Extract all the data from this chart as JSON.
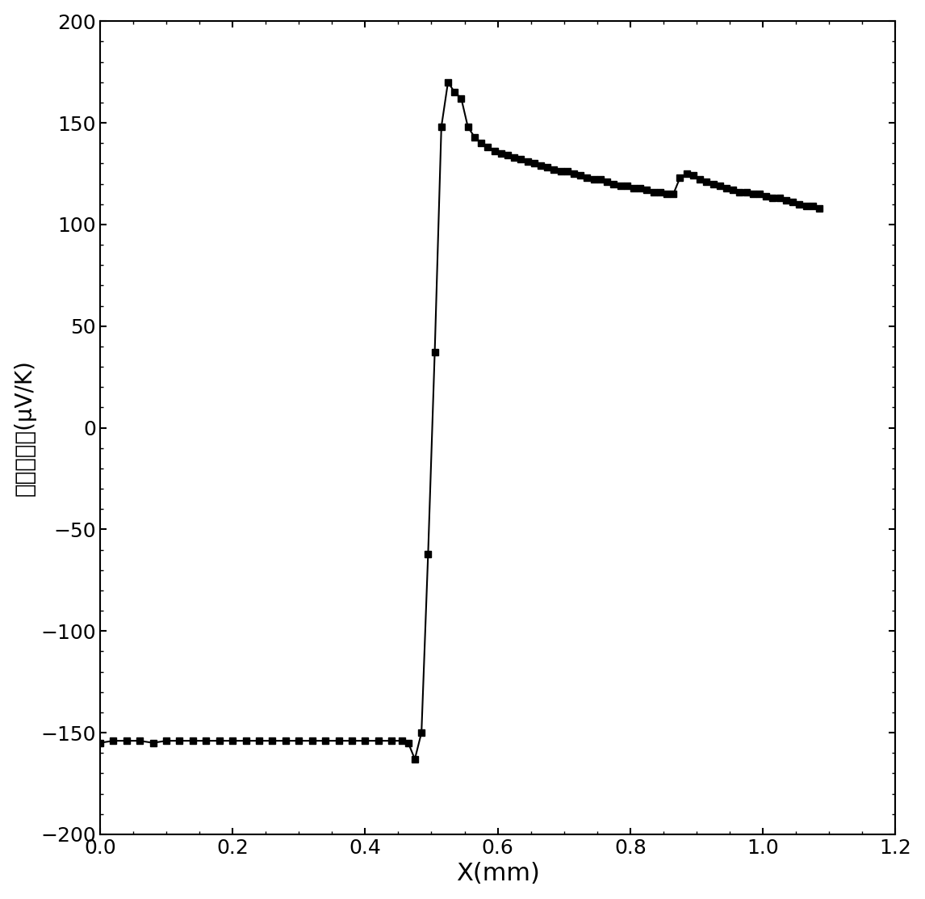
{
  "x": [
    0.0,
    0.02,
    0.04,
    0.06,
    0.08,
    0.1,
    0.12,
    0.14,
    0.16,
    0.18,
    0.2,
    0.22,
    0.24,
    0.26,
    0.28,
    0.3,
    0.32,
    0.34,
    0.36,
    0.38,
    0.4,
    0.42,
    0.44,
    0.455,
    0.465,
    0.475,
    0.485,
    0.495,
    0.505,
    0.515,
    0.525,
    0.535,
    0.545,
    0.555,
    0.565,
    0.575,
    0.585,
    0.595,
    0.605,
    0.615,
    0.625,
    0.635,
    0.645,
    0.655,
    0.665,
    0.675,
    0.685,
    0.695,
    0.705,
    0.715,
    0.725,
    0.735,
    0.745,
    0.755,
    0.765,
    0.775,
    0.785,
    0.795,
    0.805,
    0.815,
    0.825,
    0.835,
    0.845,
    0.855,
    0.865,
    0.875,
    0.885,
    0.895,
    0.905,
    0.915,
    0.925,
    0.935,
    0.945,
    0.955,
    0.965,
    0.975,
    0.985,
    0.995,
    1.005,
    1.015,
    1.025,
    1.035,
    1.045,
    1.055,
    1.065,
    1.075,
    1.085
  ],
  "y": [
    -155,
    -154,
    -154,
    -154,
    -155,
    -154,
    -154,
    -154,
    -154,
    -154,
    -154,
    -154,
    -154,
    -154,
    -154,
    -154,
    -154,
    -154,
    -154,
    -154,
    -154,
    -154,
    -154,
    -154,
    -155,
    -163,
    -150,
    -62,
    37,
    148,
    170,
    165,
    162,
    148,
    143,
    140,
    138,
    136,
    135,
    134,
    133,
    132,
    131,
    130,
    129,
    128,
    127,
    126,
    126,
    125,
    124,
    123,
    122,
    122,
    121,
    120,
    119,
    119,
    118,
    118,
    117,
    116,
    116,
    115,
    115,
    123,
    125,
    124,
    122,
    121,
    120,
    119,
    118,
    117,
    116,
    116,
    115,
    115,
    114,
    113,
    113,
    112,
    111,
    110,
    109,
    109,
    108
  ],
  "xlabel": "X(mm)",
  "ylabel": "塞贝克系数(μV/K)",
  "xlim": [
    0.0,
    1.2
  ],
  "ylim": [
    -200,
    200
  ],
  "xticks": [
    0.0,
    0.2,
    0.4,
    0.6,
    0.8,
    1.0,
    1.2
  ],
  "yticks": [
    -200,
    -150,
    -100,
    -50,
    0,
    50,
    100,
    150,
    200
  ],
  "line_color": "#000000",
  "marker": "s",
  "markersize": 6,
  "linewidth": 1.5,
  "xlabel_fontsize": 22,
  "ylabel_fontsize": 20,
  "tick_fontsize": 18,
  "background_color": "#ffffff"
}
